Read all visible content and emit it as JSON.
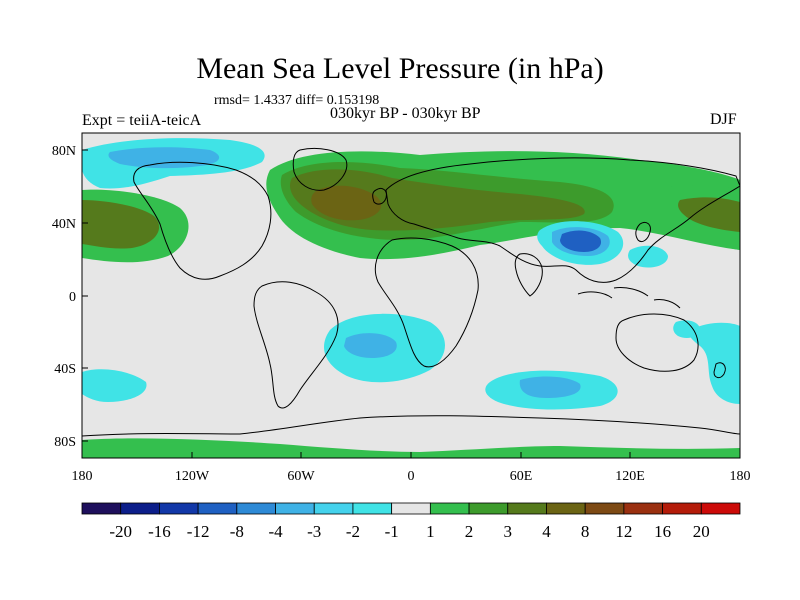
{
  "header": {
    "title": "Mean Sea Level Pressure (in hPa)",
    "subtitle": "rmsd= 1.4337 diff= 0.153198",
    "left_label": "Expt = teiiA-teicA",
    "center_label": "030kyr BP - 030kyr BP",
    "right_label": "DJF"
  },
  "axes": {
    "x_ticks": [
      "180",
      "120W",
      "60W",
      "0",
      "60E",
      "120E",
      "180"
    ],
    "y_ticks": [
      "80N",
      "40N",
      "0",
      "40S",
      "80S"
    ]
  },
  "colorbar": {
    "colors": [
      "#1e0f5c",
      "#0c1e8a",
      "#1238a8",
      "#1f60c2",
      "#2e8ad6",
      "#3fb2e6",
      "#44d2ec",
      "#40e3e6",
      "#e6e6e6",
      "#34bf4e",
      "#3d9b2c",
      "#557a1c",
      "#6b6414",
      "#7d4a14",
      "#9a3010",
      "#b41c0a",
      "#cc0a08"
    ],
    "labels": [
      "-20",
      "-16",
      "-12",
      "-8",
      "-4",
      "-3",
      "-2",
      "-1",
      "1",
      "2",
      "3",
      "4",
      "8",
      "12",
      "16",
      "20"
    ]
  },
  "palette": {
    "background": "#e6e6e6",
    "coast": "#000000"
  }
}
